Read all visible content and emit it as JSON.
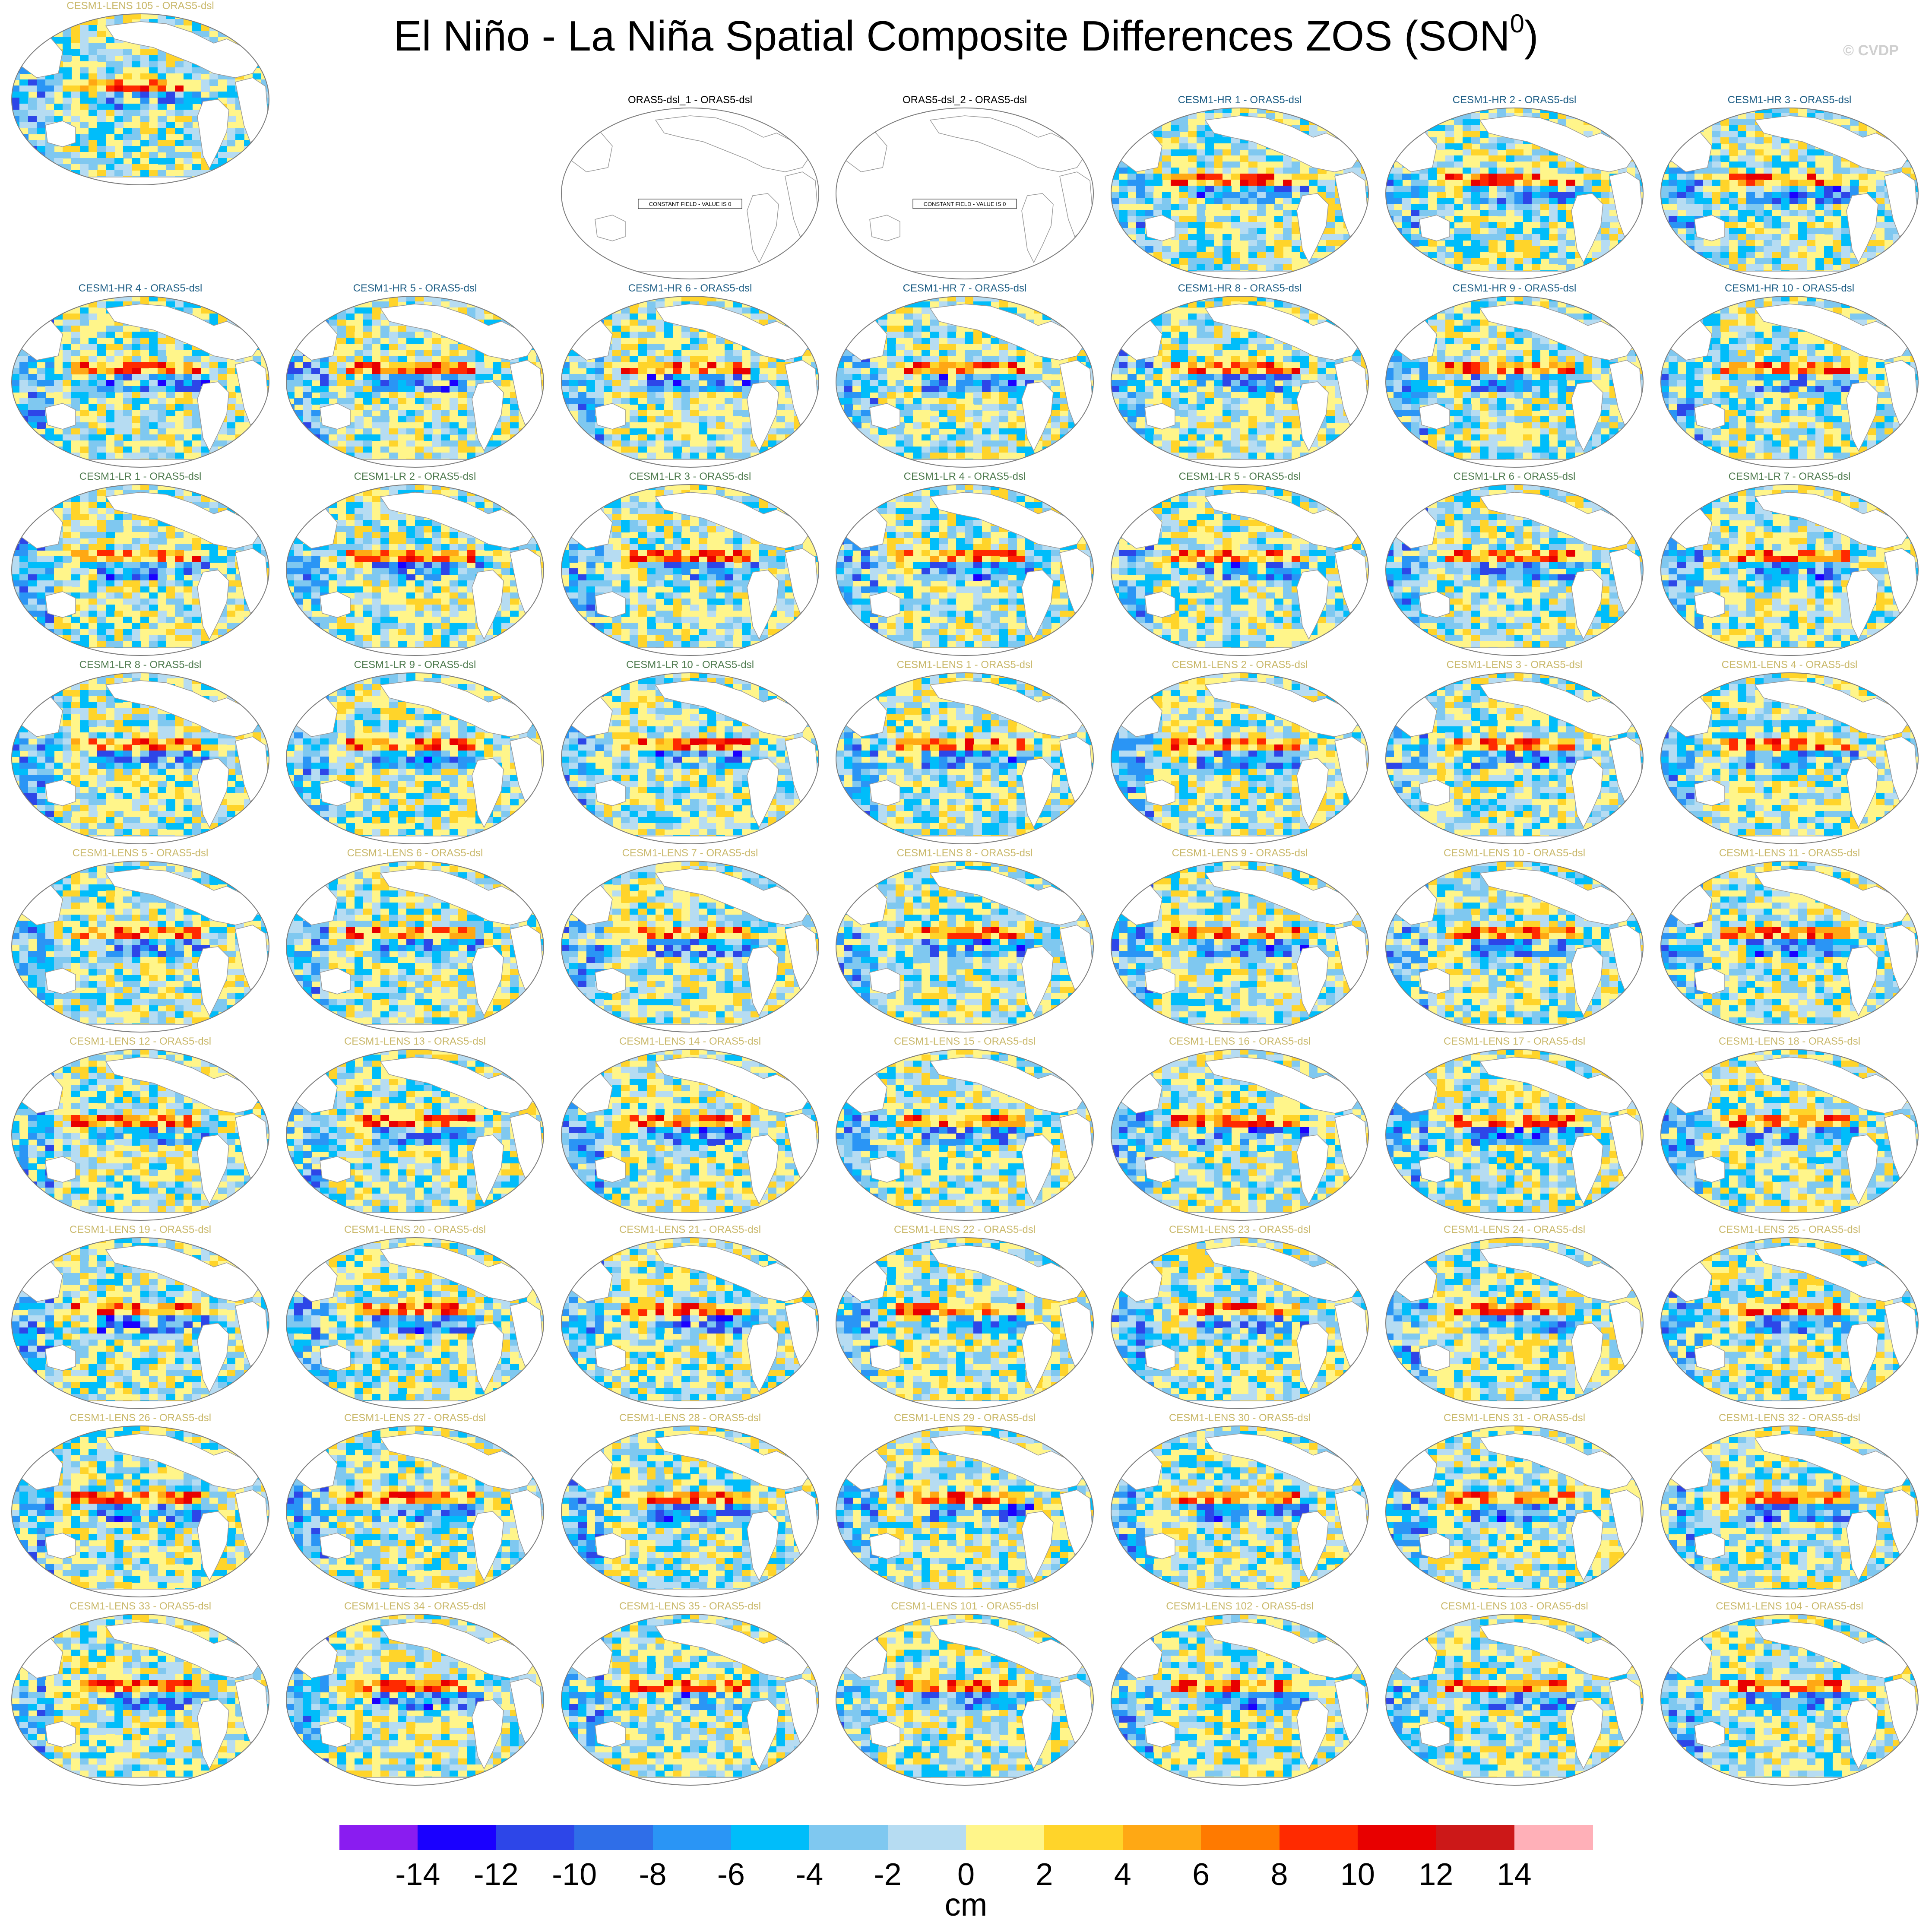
{
  "title": {
    "main": "El Niño - La Niña Spatial Composite Differences ZOS (SON",
    "superscript": "0",
    "close": ")"
  },
  "watermark": "© CVDP",
  "title_colors": {
    "obs": "#000000",
    "hr": "#1f5f86",
    "lr": "#4f7b4f",
    "lens": "#c9b86a"
  },
  "panels": [
    {
      "title": "ORAS5-dsl_1 - ORAS5-dsl",
      "group": "obs",
      "constant": true
    },
    {
      "title": "ORAS5-dsl_2 - ORAS5-dsl",
      "group": "obs",
      "constant": true
    },
    {
      "title": "CESM1-HR 1 - ORAS5-dsl",
      "group": "hr"
    },
    {
      "title": "CESM1-HR 2 - ORAS5-dsl",
      "group": "hr"
    },
    {
      "title": "CESM1-HR 3 - ORAS5-dsl",
      "group": "hr"
    },
    {
      "title": "CESM1-HR 4 - ORAS5-dsl",
      "group": "hr"
    },
    {
      "title": "CESM1-HR 5 - ORAS5-dsl",
      "group": "hr"
    },
    {
      "title": "CESM1-HR 6 - ORAS5-dsl",
      "group": "hr"
    },
    {
      "title": "CESM1-HR 7 - ORAS5-dsl",
      "group": "hr"
    },
    {
      "title": "CESM1-HR 8 - ORAS5-dsl",
      "group": "hr"
    },
    {
      "title": "CESM1-HR 9 - ORAS5-dsl",
      "group": "hr"
    },
    {
      "title": "CESM1-HR 10 - ORAS5-dsl",
      "group": "hr"
    },
    {
      "title": "CESM1-LR 1 - ORAS5-dsl",
      "group": "lr"
    },
    {
      "title": "CESM1-LR 2 - ORAS5-dsl",
      "group": "lr"
    },
    {
      "title": "CESM1-LR 3 - ORAS5-dsl",
      "group": "lr"
    },
    {
      "title": "CESM1-LR 4 - ORAS5-dsl",
      "group": "lr"
    },
    {
      "title": "CESM1-LR 5 - ORAS5-dsl",
      "group": "lr"
    },
    {
      "title": "CESM1-LR 6 - ORAS5-dsl",
      "group": "lr"
    },
    {
      "title": "CESM1-LR 7 - ORAS5-dsl",
      "group": "lr"
    },
    {
      "title": "CESM1-LR 8 - ORAS5-dsl",
      "group": "lr"
    },
    {
      "title": "CESM1-LR 9 - ORAS5-dsl",
      "group": "lr"
    },
    {
      "title": "CESM1-LR 10 - ORAS5-dsl",
      "group": "lr"
    },
    {
      "title": "CESM1-LENS 1 - ORAS5-dsl",
      "group": "lens"
    },
    {
      "title": "CESM1-LENS 2 - ORAS5-dsl",
      "group": "lens"
    },
    {
      "title": "CESM1-LENS 3 - ORAS5-dsl",
      "group": "lens"
    },
    {
      "title": "CESM1-LENS 4 - ORAS5-dsl",
      "group": "lens"
    },
    {
      "title": "CESM1-LENS 5 - ORAS5-dsl",
      "group": "lens"
    },
    {
      "title": "CESM1-LENS 6 - ORAS5-dsl",
      "group": "lens"
    },
    {
      "title": "CESM1-LENS 7 - ORAS5-dsl",
      "group": "lens"
    },
    {
      "title": "CESM1-LENS 8 - ORAS5-dsl",
      "group": "lens"
    },
    {
      "title": "CESM1-LENS 9 - ORAS5-dsl",
      "group": "lens"
    },
    {
      "title": "CESM1-LENS 10 - ORAS5-dsl",
      "group": "lens"
    },
    {
      "title": "CESM1-LENS 11 - ORAS5-dsl",
      "group": "lens"
    },
    {
      "title": "CESM1-LENS 12 - ORAS5-dsl",
      "group": "lens"
    },
    {
      "title": "CESM1-LENS 13 - ORAS5-dsl",
      "group": "lens"
    },
    {
      "title": "CESM1-LENS 14 - ORAS5-dsl",
      "group": "lens"
    },
    {
      "title": "CESM1-LENS 15 - ORAS5-dsl",
      "group": "lens"
    },
    {
      "title": "CESM1-LENS 16 - ORAS5-dsl",
      "group": "lens"
    },
    {
      "title": "CESM1-LENS 17 - ORAS5-dsl",
      "group": "lens"
    },
    {
      "title": "CESM1-LENS 18 - ORAS5-dsl",
      "group": "lens"
    },
    {
      "title": "CESM1-LENS 19 - ORAS5-dsl",
      "group": "lens"
    },
    {
      "title": "CESM1-LENS 20 - ORAS5-dsl",
      "group": "lens"
    },
    {
      "title": "CESM1-LENS 21 - ORAS5-dsl",
      "group": "lens"
    },
    {
      "title": "CESM1-LENS 22 - ORAS5-dsl",
      "group": "lens"
    },
    {
      "title": "CESM1-LENS 23 - ORAS5-dsl",
      "group": "lens"
    },
    {
      "title": "CESM1-LENS 24 - ORAS5-dsl",
      "group": "lens"
    },
    {
      "title": "CESM1-LENS 25 - ORAS5-dsl",
      "group": "lens"
    },
    {
      "title": "CESM1-LENS 26 - ORAS5-dsl",
      "group": "lens"
    },
    {
      "title": "CESM1-LENS 27 - ORAS5-dsl",
      "group": "lens"
    },
    {
      "title": "CESM1-LENS 28 - ORAS5-dsl",
      "group": "lens"
    },
    {
      "title": "CESM1-LENS 29 - ORAS5-dsl",
      "group": "lens"
    },
    {
      "title": "CESM1-LENS 30 - ORAS5-dsl",
      "group": "lens"
    },
    {
      "title": "CESM1-LENS 31 - ORAS5-dsl",
      "group": "lens"
    },
    {
      "title": "CESM1-LENS 32 - ORAS5-dsl",
      "group": "lens"
    },
    {
      "title": "CESM1-LENS 33 - ORAS5-dsl",
      "group": "lens"
    },
    {
      "title": "CESM1-LENS 34 - ORAS5-dsl",
      "group": "lens"
    },
    {
      "title": "CESM1-LENS 35 - ORAS5-dsl",
      "group": "lens"
    },
    {
      "title": "CESM1-LENS 101 - ORAS5-dsl",
      "group": "lens"
    },
    {
      "title": "CESM1-LENS 102 - ORAS5-dsl",
      "group": "lens"
    },
    {
      "title": "CESM1-LENS 103 - ORAS5-dsl",
      "group": "lens"
    },
    {
      "title": "CESM1-LENS 104 - ORAS5-dsl",
      "group": "lens"
    },
    {
      "title": "CESM1-LENS 105 - ORAS5-dsl",
      "group": "lens"
    }
  ],
  "constant_field_label": "CONSTANT FIELD - VALUE IS 0",
  "colorbar": {
    "colors": [
      "#8a1cf0",
      "#1a00ff",
      "#2d46e8",
      "#2f6ee8",
      "#2a95f5",
      "#00bdfa",
      "#7fc8f0",
      "#b6dcf2",
      "#fff58a",
      "#ffd42a",
      "#ffa814",
      "#ff7a00",
      "#ff2a00",
      "#e80000",
      "#cc1818",
      "#ffb0b8"
    ],
    "ticks": [
      "-14",
      "-12",
      "-10",
      "-8",
      "-6",
      "-4",
      "-2",
      "0",
      "2",
      "4",
      "6",
      "8",
      "10",
      "12",
      "14"
    ],
    "unit": "cm"
  }
}
